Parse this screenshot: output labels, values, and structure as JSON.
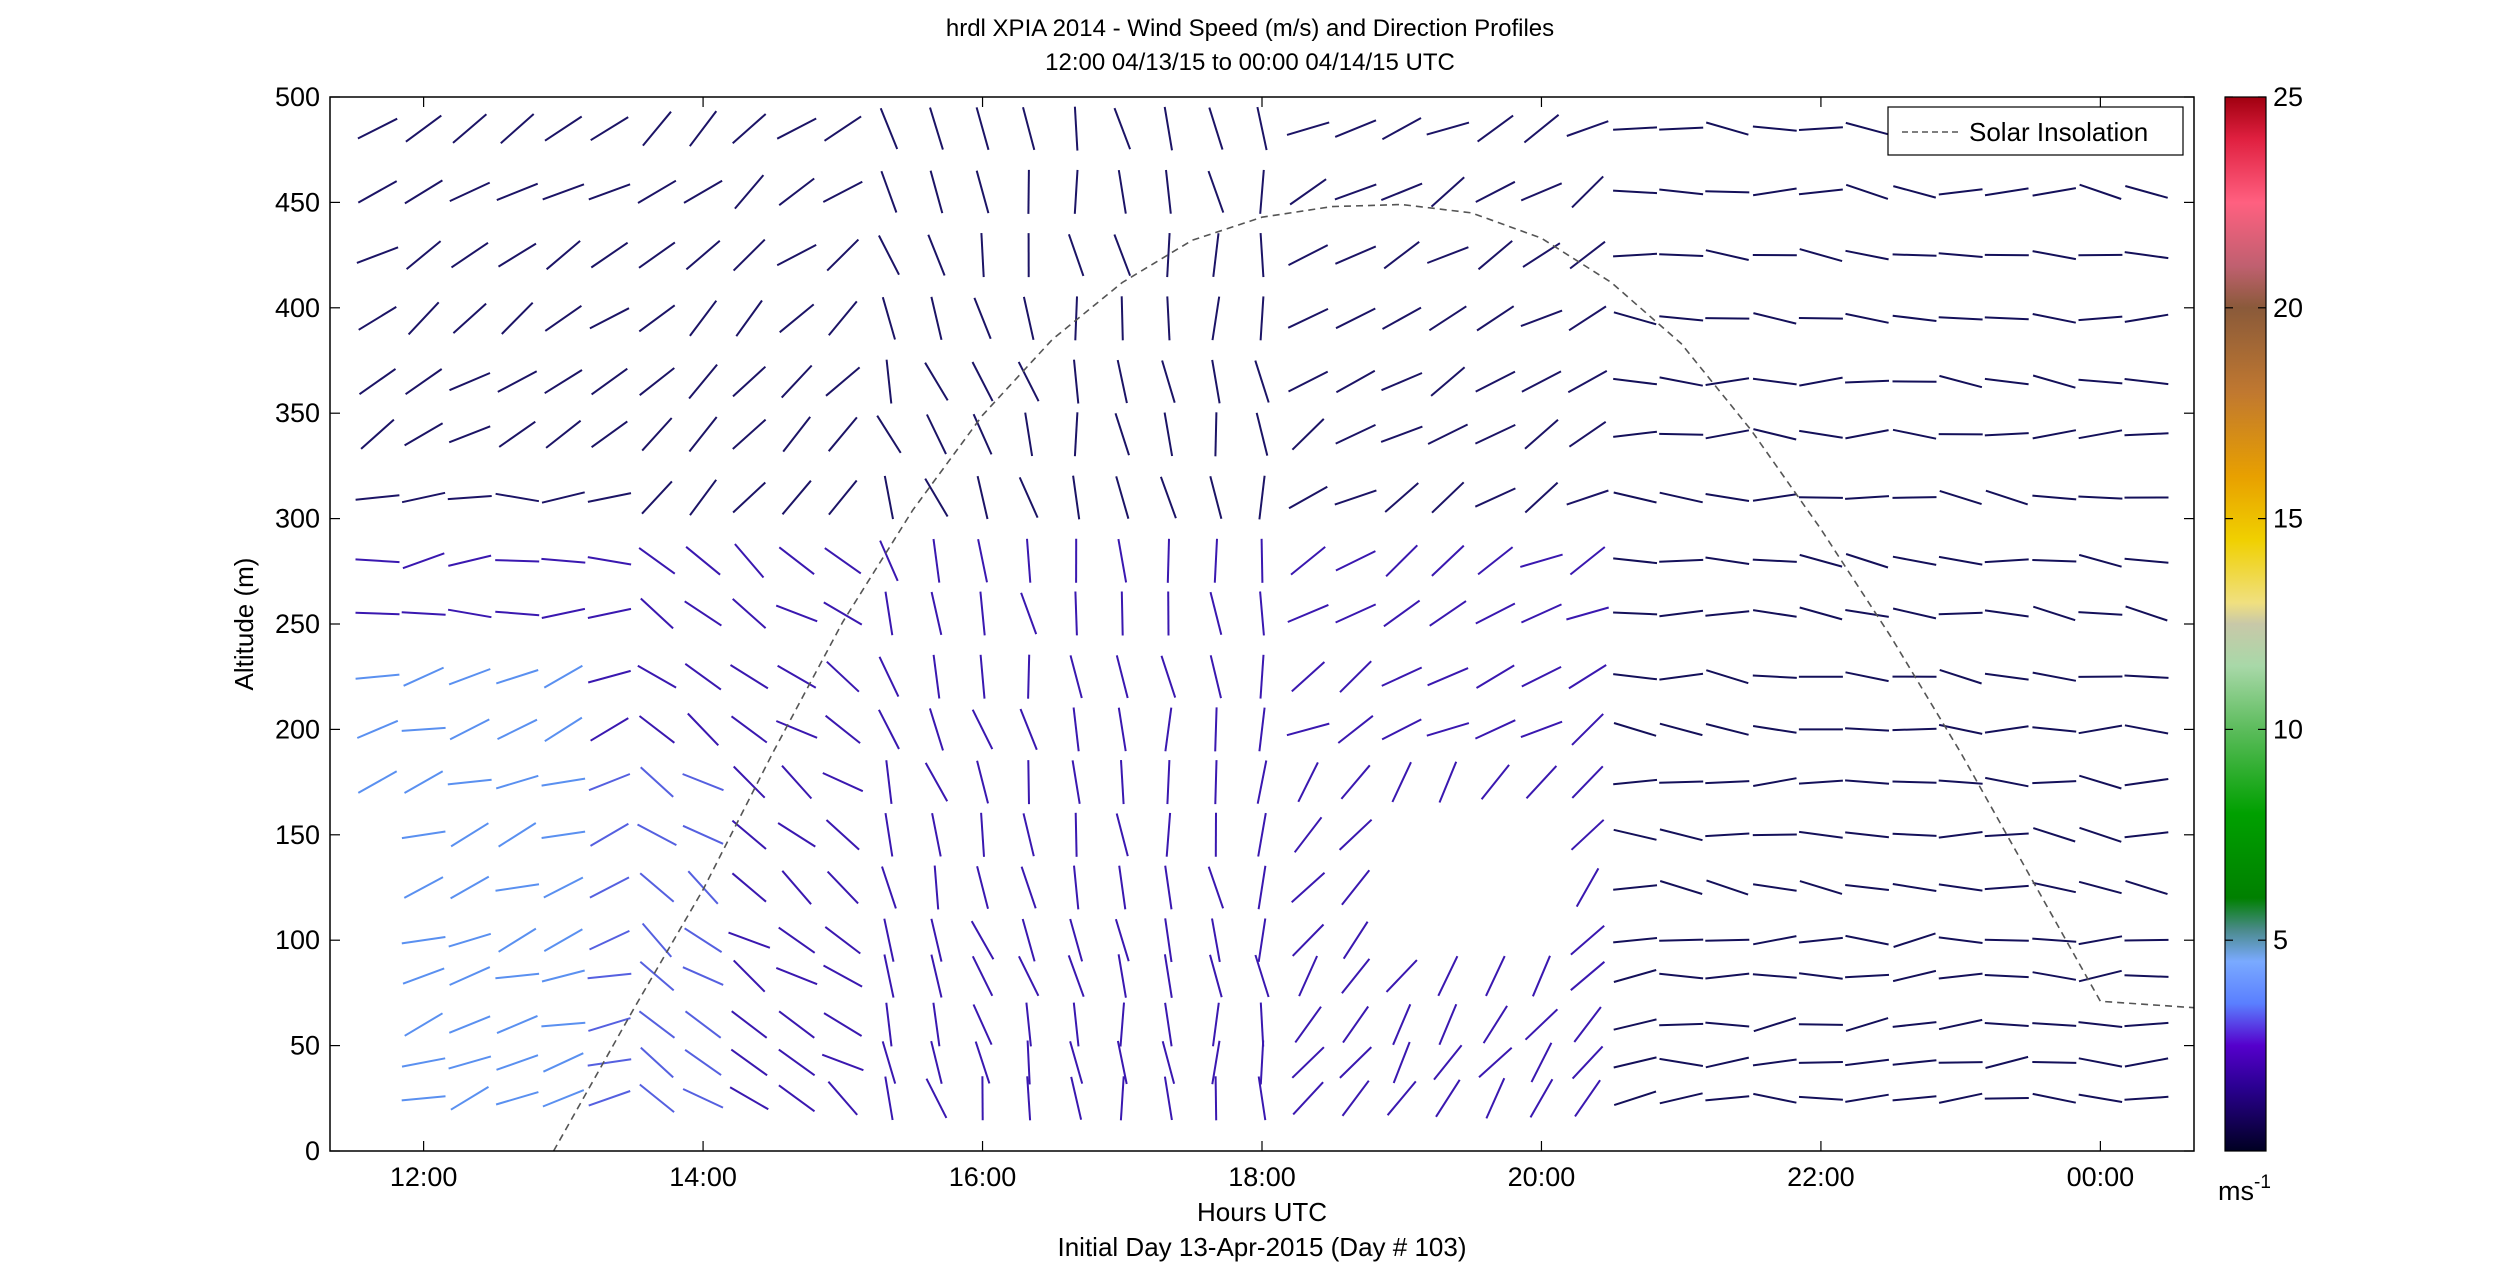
{
  "chart_data": {
    "type": "wind-barb-profile",
    "title": "hrdl XPIA 2014 - Wind Speed (m/s) and Direction Profiles",
    "subtitle": "12:00 04/13/15 to 00:00 04/14/15  UTC",
    "xlabel": "Hours UTC",
    "xlabel2": "Initial Day 13-Apr-2015 (Day # 103)",
    "ylabel": "Altitude (m)",
    "xlim_hours": [
      11.33,
      24.67
    ],
    "ylim": [
      0,
      500
    ],
    "x_ticks": [
      {
        "hour": 12,
        "label": "12:00"
      },
      {
        "hour": 14,
        "label": "14:00"
      },
      {
        "hour": 16,
        "label": "16:00"
      },
      {
        "hour": 18,
        "label": "18:00"
      },
      {
        "hour": 20,
        "label": "20:00"
      },
      {
        "hour": 22,
        "label": "22:00"
      },
      {
        "hour": 24,
        "label": "00:00"
      }
    ],
    "y_ticks": [
      0,
      50,
      100,
      150,
      200,
      250,
      300,
      350,
      400,
      450,
      500
    ],
    "legend": {
      "entries": [
        "Solar Insolation"
      ],
      "placement": "top-right",
      "style": "dashed-gray"
    },
    "colorbar": {
      "range": [
        0,
        25
      ],
      "ticks": [
        5,
        10,
        15,
        20,
        25
      ],
      "unit_label": "ms",
      "unit_exponent": "-1"
    },
    "solar_insolation": {
      "x_hours": [
        12.93,
        13.5,
        14.0,
        14.5,
        15.0,
        15.5,
        16.0,
        16.5,
        17.0,
        17.5,
        18.0,
        18.5,
        19.0,
        19.5,
        20.0,
        20.5,
        21.0,
        21.5,
        22.0,
        22.5,
        23.0,
        23.5,
        24.0,
        24.67
      ],
      "y_altitude": [
        0,
        67,
        124,
        189,
        251,
        304,
        349,
        385,
        412,
        432,
        443,
        448,
        449,
        445,
        433,
        412,
        383,
        342,
        295,
        244,
        189,
        130,
        71,
        68
      ]
    },
    "wind_profile": {
      "times_hours": [
        11.67,
        12.0,
        12.33,
        12.67,
        13.0,
        13.33,
        13.67,
        14.0,
        14.33,
        14.67,
        15.0,
        15.33,
        15.67,
        16.0,
        16.33,
        16.67,
        17.0,
        17.33,
        17.67,
        18.0,
        18.33,
        18.67,
        19.0,
        19.33,
        19.67,
        20.0,
        20.33,
        20.67,
        21.0,
        21.33,
        21.67,
        22.0,
        22.33,
        22.67,
        23.0,
        23.33,
        23.67,
        24.0,
        24.33
      ],
      "altitudes_m": [
        25,
        42,
        60,
        83,
        100,
        125,
        150,
        175,
        200,
        225,
        255,
        280,
        310,
        340,
        365,
        395,
        425,
        455,
        485
      ],
      "note": "segments encode wind direction; color encodes speed via colorbar",
      "representative_direction_deg": {
        "low_level_morning": 290,
        "midday_mixed": 200,
        "evening_low_level": 270
      }
    }
  }
}
